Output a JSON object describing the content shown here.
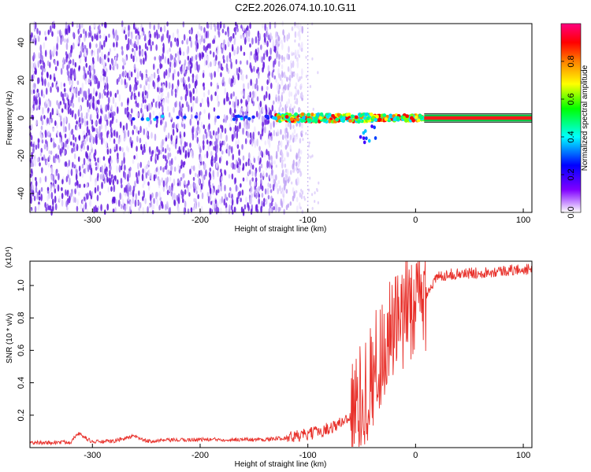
{
  "title": "C2E2.2026.074.10.10.G11",
  "colors": {
    "snr_line": "#e8302a",
    "axis": "#000000",
    "background": "#ffffff",
    "spectrogram_low": "#cbb6f0",
    "spectrogram_mid": "#6a1de0",
    "spectrogram_high": "#ff0000"
  },
  "chart_data": [
    {
      "type": "heatmap",
      "name": "spectrogram",
      "xlabel": "Height of straight line (km)",
      "ylabel": "Frequency (Hz)",
      "xlim": [
        -358,
        108
      ],
      "ylim": [
        -50,
        50
      ],
      "xticks": [
        -300,
        -200,
        -100,
        0,
        100
      ],
      "yticks": [
        -40,
        -20,
        0,
        20,
        40
      ],
      "colorbar": {
        "label": "Normalized spectral amplitude",
        "range": [
          0,
          1
        ],
        "ticks": [
          "0.0",
          "0.2",
          "0.4",
          "0.6",
          "0.8"
        ],
        "colormap": [
          "#ffffff",
          "#8000ff",
          "#0000ff",
          "#00ffff",
          "#00ff00",
          "#ffff00",
          "#ff8000",
          "#ff0000",
          "#ff0080"
        ]
      },
      "features": {
        "noise_region_x": [
          -358,
          -130
        ],
        "tone_start_x": -130,
        "steady_tone_x": [
          8,
          108
        ],
        "tone_frequency": 0
      }
    },
    {
      "type": "line",
      "name": "snr",
      "xlabel": "Height of straight line (km)",
      "ylabel": "SNR (10 * v/v)",
      "yscale_label": "(x10⁴)",
      "xlim": [
        -358,
        108
      ],
      "ylim": [
        0,
        1.15
      ],
      "xticks": [
        -300,
        -200,
        -100,
        0,
        100
      ],
      "yticks": [
        0.2,
        0.4,
        0.6,
        0.8,
        1.0
      ],
      "series": [
        {
          "x": [
            -358,
            -340,
            -320,
            -314,
            -300,
            -280,
            -262,
            -250,
            -230,
            -200,
            -170,
            -140,
            -120,
            -100,
            -90,
            -80,
            -70,
            -60,
            -50,
            -40,
            -35,
            -30,
            -25,
            -20,
            -15,
            -10,
            -5,
            0,
            5,
            10,
            15,
            20,
            25,
            30,
            40,
            60,
            80,
            100,
            108
          ],
          "y": [
            0.03,
            0.03,
            0.035,
            0.09,
            0.035,
            0.04,
            0.07,
            0.04,
            0.045,
            0.05,
            0.05,
            0.05,
            0.06,
            0.08,
            0.1,
            0.12,
            0.15,
            0.2,
            0.3,
            0.45,
            0.55,
            0.6,
            0.68,
            0.75,
            0.72,
            0.8,
            0.9,
            0.85,
            0.9,
            0.95,
            1.0,
            1.05,
            1.06,
            1.07,
            1.07,
            1.08,
            1.09,
            1.1,
            1.1
          ]
        }
      ]
    }
  ]
}
